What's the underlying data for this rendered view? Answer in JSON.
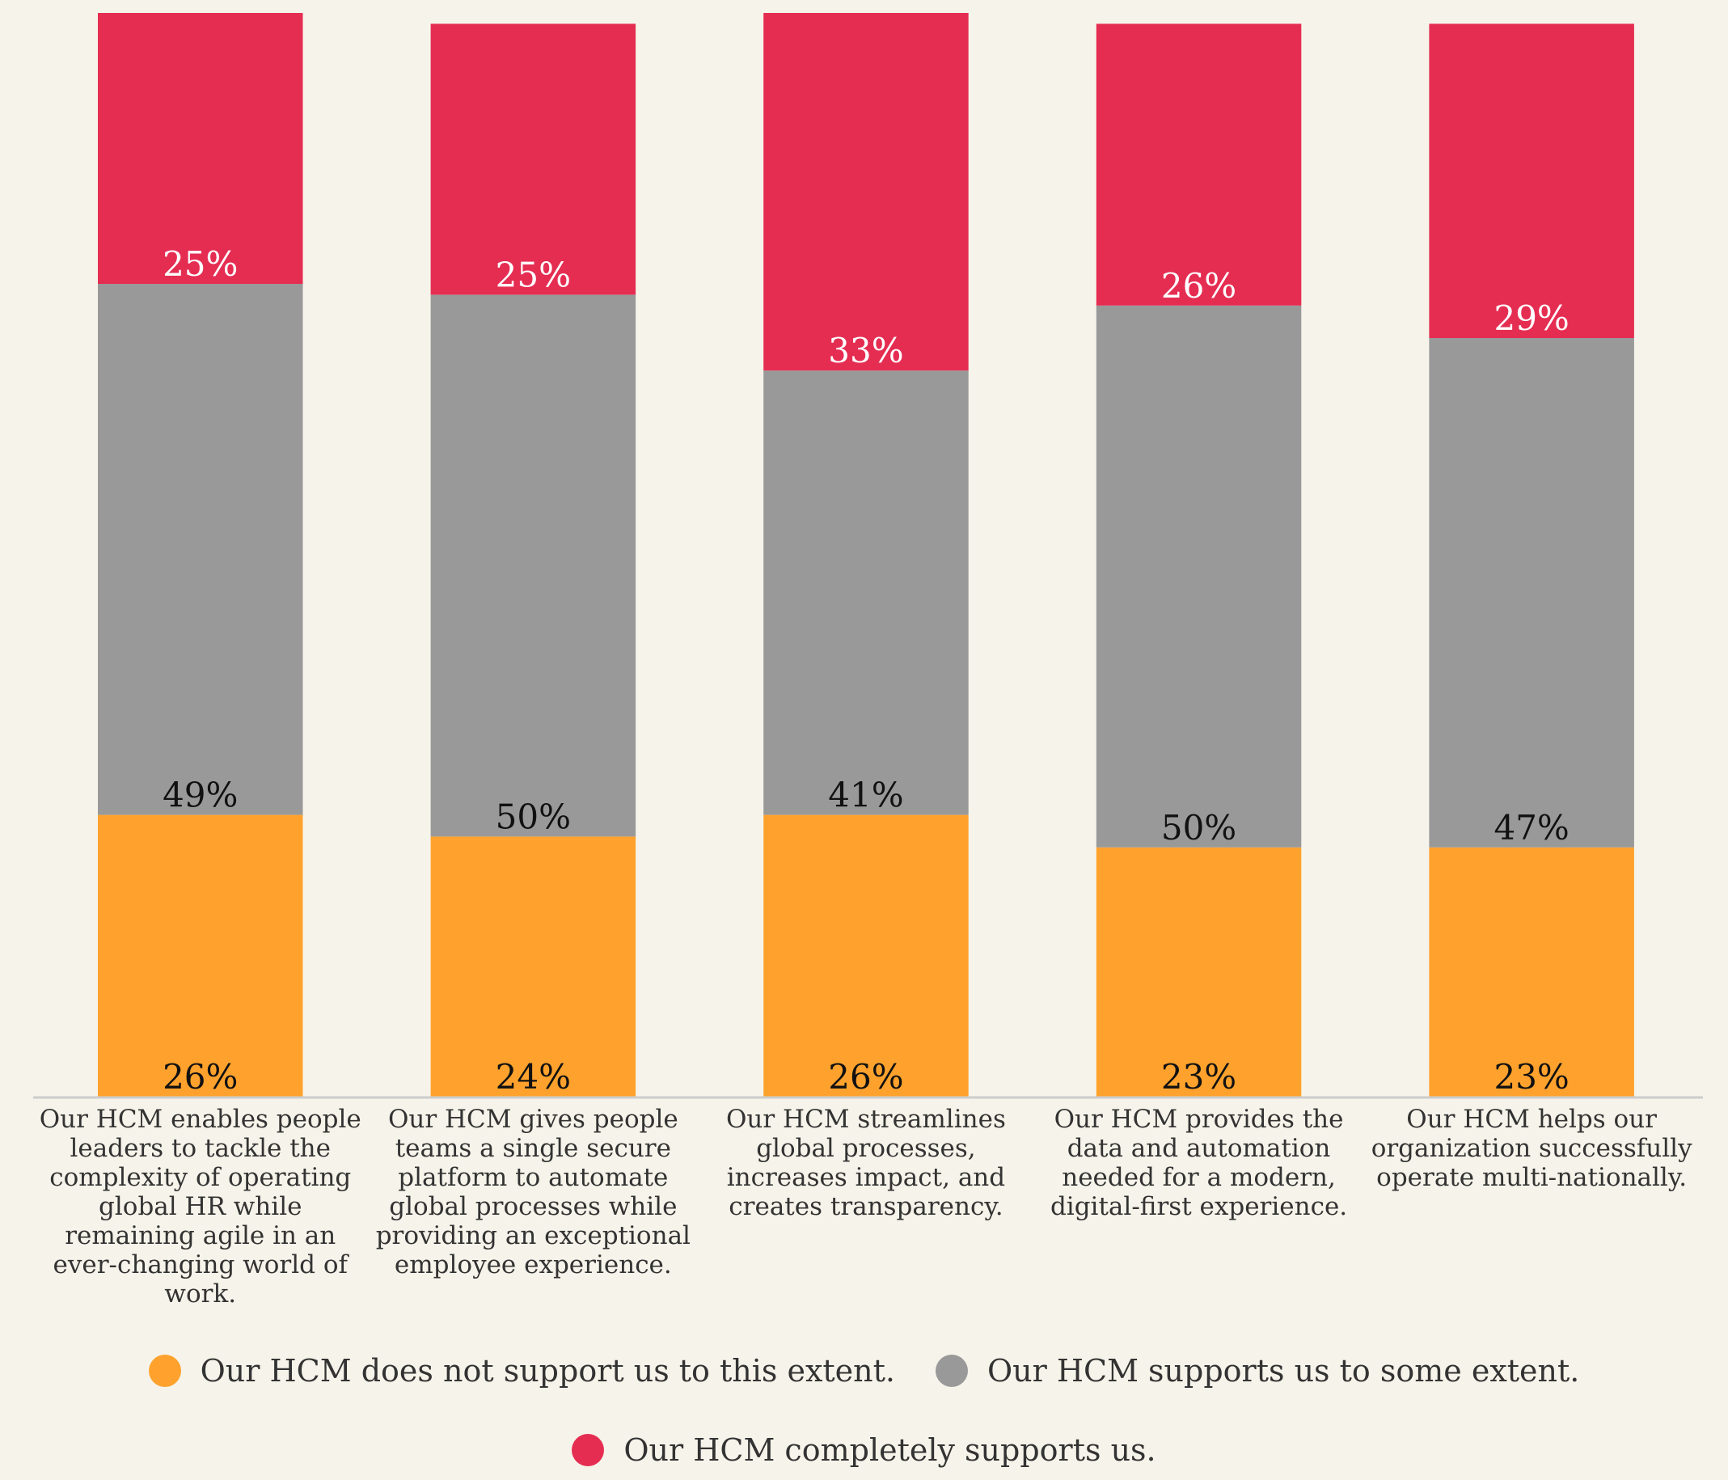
{
  "chart_data": {
    "type": "stacked_bar",
    "categories": [
      "Our HCM enables people leaders to tackle the complexity of operating global HR while remaining agile in an ever-changing world of work.",
      "Our HCM gives people teams a single secure platform to automate global processes while providing an exceptional employee experience.",
      "Our HCM streamlines global processes, increases impact, and creates transparency.",
      "Our HCM provides the data and automation needed for a modern, digital-first experience.",
      "Our HCM helps our organization successfully operate multi-nationally."
    ],
    "series": [
      {
        "name": "Our HCM does not support us to this extent.",
        "color": "#ffa22d",
        "label_color": "#111111",
        "values": [
          26,
          24,
          26,
          23,
          23
        ],
        "value_labels": [
          "26%",
          "24%",
          "26%",
          "23%",
          "23%"
        ]
      },
      {
        "name": "Our HCM supports us to some extent.",
        "color": "#999999",
        "label_color": "#111111",
        "values": [
          49,
          50,
          41,
          50,
          47
        ],
        "value_labels": [
          "49%",
          "50%",
          "41%",
          "50%",
          "47%"
        ]
      },
      {
        "name": "Our HCM completely supports us.",
        "color": "#e52d52",
        "label_color": "#ffffff",
        "values": [
          25,
          25,
          33,
          26,
          29
        ],
        "value_labels": [
          "25%",
          "25%",
          "33%",
          "26%",
          "29%"
        ]
      }
    ],
    "ylim": [
      0,
      100
    ]
  }
}
